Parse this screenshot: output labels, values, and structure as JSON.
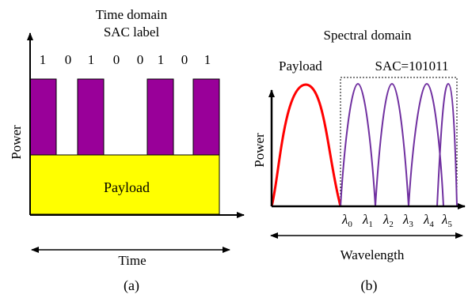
{
  "panel_a": {
    "title_line1": "Time domain",
    "title_line2": "SAC label",
    "bits": [
      "1",
      "0",
      "1",
      "0",
      "0",
      "1",
      "0",
      "1"
    ],
    "y_axis_label": "Power",
    "payload_label": "Payload",
    "x_axis_label": "Time",
    "caption": "(a)"
  },
  "panel_b": {
    "title": "Spectral domain",
    "payload_label": "Payload",
    "sac_label": "SAC=101011",
    "y_axis_label": "Power",
    "wavelength_labels": [
      {
        "symbol": "λ",
        "sub": "0"
      },
      {
        "symbol": "λ",
        "sub": "1"
      },
      {
        "symbol": "λ",
        "sub": "2"
      },
      {
        "symbol": "λ",
        "sub": "3"
      },
      {
        "symbol": "λ",
        "sub": "4"
      },
      {
        "symbol": "λ",
        "sub": "5"
      }
    ],
    "x_axis_label": "Wavelength",
    "caption": "(b)"
  },
  "colors": {
    "pulse_fill": "#990099",
    "payload_fill": "#ffff00",
    "payload_curve": "#ff0000",
    "code_curve": "#7030a0",
    "axis": "#000000"
  }
}
